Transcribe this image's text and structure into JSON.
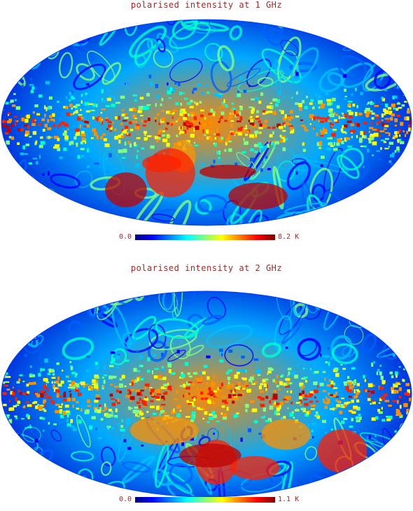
{
  "maps": [
    {
      "title": "polarised intensity at 1 GHz",
      "colorbar": {
        "min": "0.0",
        "max": "8.2 K"
      },
      "seed": 7
    },
    {
      "title": "polarised intensity at 2 GHz",
      "colorbar": {
        "min": "0.0",
        "max": "1.1 K"
      },
      "seed": 19
    }
  ],
  "colormap": "jet"
}
